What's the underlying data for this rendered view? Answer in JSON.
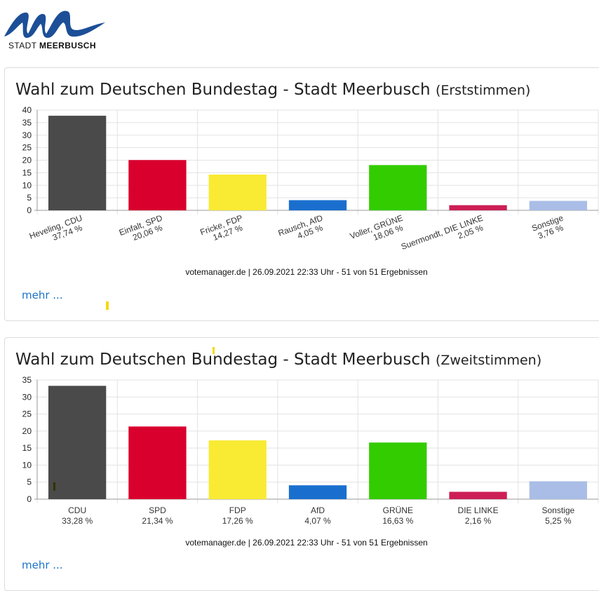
{
  "logo": {
    "text_normal": "STADT ",
    "text_bold": "MEERBUSCH",
    "color": "#1c4f97"
  },
  "cards": [
    {
      "title_main": "Wahl zum Deutschen Bundestag - Stadt Meerbusch",
      "title_sub": "(Erststimmen)",
      "source": "votemanager.de | 26.09.2021 22:33 Uhr - 51 von 51 Ergebnissen",
      "more_label": "mehr ..."
    },
    {
      "title_main": "Wahl zum Deutschen Bundestag - Stadt Meerbusch",
      "title_sub": "(Zweitstimmen)",
      "source": "votemanager.de | 26.09.2021 22:33 Uhr - 51 von 51 Ergebnissen",
      "more_label": "mehr ..."
    }
  ],
  "chart_data": [
    {
      "type": "bar",
      "categories": [
        "Heveling, CDU",
        "Einfalt, SPD",
        "Fricke, FDP",
        "Rausch, AfD",
        "Voller, GRÜNE",
        "Suermondt, DIE LINKE",
        "Sonstige"
      ],
      "value_labels": [
        "37,74 %",
        "20,06 %",
        "14,27 %",
        "4,05 %",
        "18,06 %",
        "2,05 %",
        "3,76 %"
      ],
      "values": [
        37.74,
        20.06,
        14.27,
        4.05,
        18.06,
        2.05,
        3.76
      ],
      "colors": [
        "#4a4a4a",
        "#d9002e",
        "#f9ea34",
        "#1a6fce",
        "#33cc00",
        "#cc1f55",
        "#a9bde6"
      ],
      "ylim": [
        0,
        40
      ],
      "yticks": [
        0,
        5,
        10,
        15,
        20,
        25,
        30,
        35,
        40
      ],
      "grid": true,
      "rotated_labels": true
    },
    {
      "type": "bar",
      "categories": [
        "CDU",
        "SPD",
        "FDP",
        "AfD",
        "GRÜNE",
        "DIE LINKE",
        "Sonstige"
      ],
      "value_labels": [
        "33,28 %",
        "21,34 %",
        "17,26 %",
        "4,07 %",
        "16,63 %",
        "2,16 %",
        "5,25 %"
      ],
      "values": [
        33.28,
        21.34,
        17.26,
        4.07,
        16.63,
        2.16,
        5.25
      ],
      "colors": [
        "#4a4a4a",
        "#d9002e",
        "#f9ea34",
        "#1a6fce",
        "#33cc00",
        "#cc1f55",
        "#a9bde6"
      ],
      "ylim": [
        0,
        35
      ],
      "yticks": [
        0,
        5,
        10,
        15,
        20,
        25,
        30,
        35
      ],
      "grid": true,
      "rotated_labels": false
    }
  ]
}
